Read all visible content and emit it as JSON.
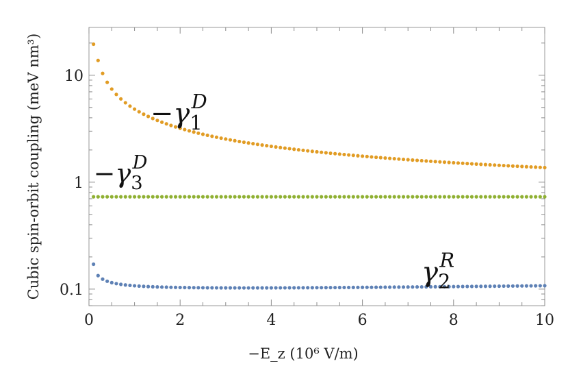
{
  "chart_data": {
    "type": "scatter",
    "xlabel": "−E_z (10⁶ V/m)",
    "ylabel": "Cubic spin-orbit coupling (meV nm³)",
    "xlim": [
      0,
      10
    ],
    "ylim": [
      0.07,
      28
    ],
    "y_scale": "log",
    "x_ticks": [
      0,
      2,
      4,
      6,
      8,
      10
    ],
    "y_ticks": [
      0.1,
      1,
      10
    ],
    "x_tick_labels": [
      "0",
      "2",
      "4",
      "6",
      "8",
      "10"
    ],
    "y_tick_labels": [
      "0.1",
      "1",
      "10"
    ],
    "grid": false,
    "series": [
      {
        "name": "−γ1D",
        "label_base": "−γ",
        "label_sub": "1",
        "label_sup": "D",
        "color": "#e19c24",
        "curve": "inverse",
        "x_start": 0.1,
        "x_end": 10,
        "step": 0.1,
        "points_sample": [
          [
            0.1,
            19.5
          ],
          [
            0.2,
            12.0
          ],
          [
            0.5,
            6.7
          ],
          [
            1,
            4.6
          ],
          [
            2,
            2.85
          ],
          [
            4,
            1.75
          ],
          [
            6,
            1.3
          ],
          [
            8,
            1.07
          ],
          [
            10,
            0.9
          ]
        ]
      },
      {
        "name": "−γ3D",
        "label_base": "−γ",
        "label_sub": "3",
        "label_sup": "D",
        "color": "#8fb032",
        "curve": "constant",
        "x_start": 0.1,
        "x_end": 10,
        "step": 0.1,
        "points_sample": [
          [
            0.1,
            0.73
          ],
          [
            5,
            0.73
          ],
          [
            10,
            0.73
          ]
        ]
      },
      {
        "name": "γ2R",
        "label_base": "γ",
        "label_sub": "2",
        "label_sup": "R",
        "color": "#5e81b5",
        "curve": "dip",
        "x_start": 0.1,
        "x_end": 10,
        "step": 0.1,
        "points_sample": [
          [
            0.1,
            0.171
          ],
          [
            0.3,
            0.128
          ],
          [
            0.6,
            0.113
          ],
          [
            1,
            0.108
          ],
          [
            2.5,
            0.104
          ],
          [
            4,
            0.104
          ],
          [
            6,
            0.106
          ],
          [
            8,
            0.109
          ],
          [
            10,
            0.112
          ]
        ]
      }
    ]
  }
}
